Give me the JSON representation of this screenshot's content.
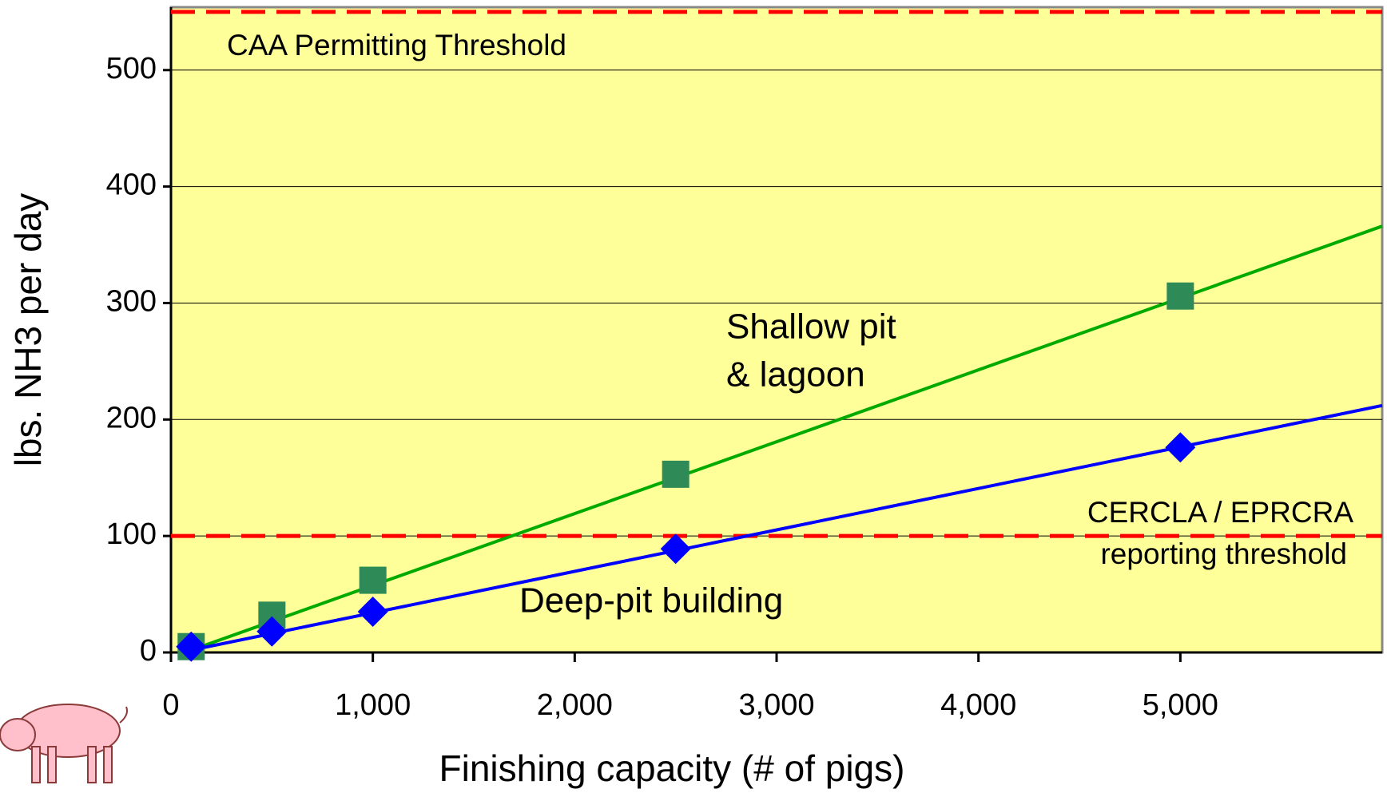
{
  "chart_data": {
    "type": "scatter",
    "x_label": "Finishing capacity (# of pigs)",
    "y_label": "lbs. NH3 per day",
    "xlim": [
      0,
      6000
    ],
    "ylim": [
      0,
      554
    ],
    "xticks": [
      0,
      {
        "value": 1000,
        "label": "1,000"
      },
      {
        "value": 2000,
        "label": "2,000"
      },
      {
        "value": 3000,
        "label": "3,000"
      },
      {
        "value": 4000,
        "label": "4,000"
      },
      {
        "value": 5000,
        "label": "5,000"
      }
    ],
    "yticks": [
      0,
      100,
      200,
      300,
      400,
      500
    ],
    "grid": true,
    "background": "#ffff99",
    "series": [
      {
        "color": "#2e8b57",
        "marker": "square",
        "x": [
          100,
          500,
          1000,
          2500,
          5000
        ],
        "values": [
          5,
          32,
          62,
          153,
          306
        ]
      },
      {
        "color": "#0000ff",
        "marker": "diamond",
        "x": [
          100,
          500,
          1000,
          2500,
          5000
        ],
        "values": [
          5,
          18,
          35,
          89,
          176
        ]
      }
    ],
    "trendlines": [
      {
        "color": "#00aa00",
        "x": [
          100,
          6000
        ],
        "values": [
          2,
          366
        ]
      },
      {
        "color": "#0000ff",
        "x": [
          100,
          6000
        ],
        "values": [
          2,
          212
        ]
      }
    ],
    "thresholds": [
      {
        "value": 550,
        "color": "#ff0000"
      },
      {
        "value": 100,
        "color": "#ff0000"
      }
    ],
    "annotations": [
      "Shallow pit",
      "& lagoon",
      "Deep-pit building",
      "CAA Permitting Threshold",
      "CERCLA / EPRCRA",
      "reporting threshold"
    ]
  }
}
